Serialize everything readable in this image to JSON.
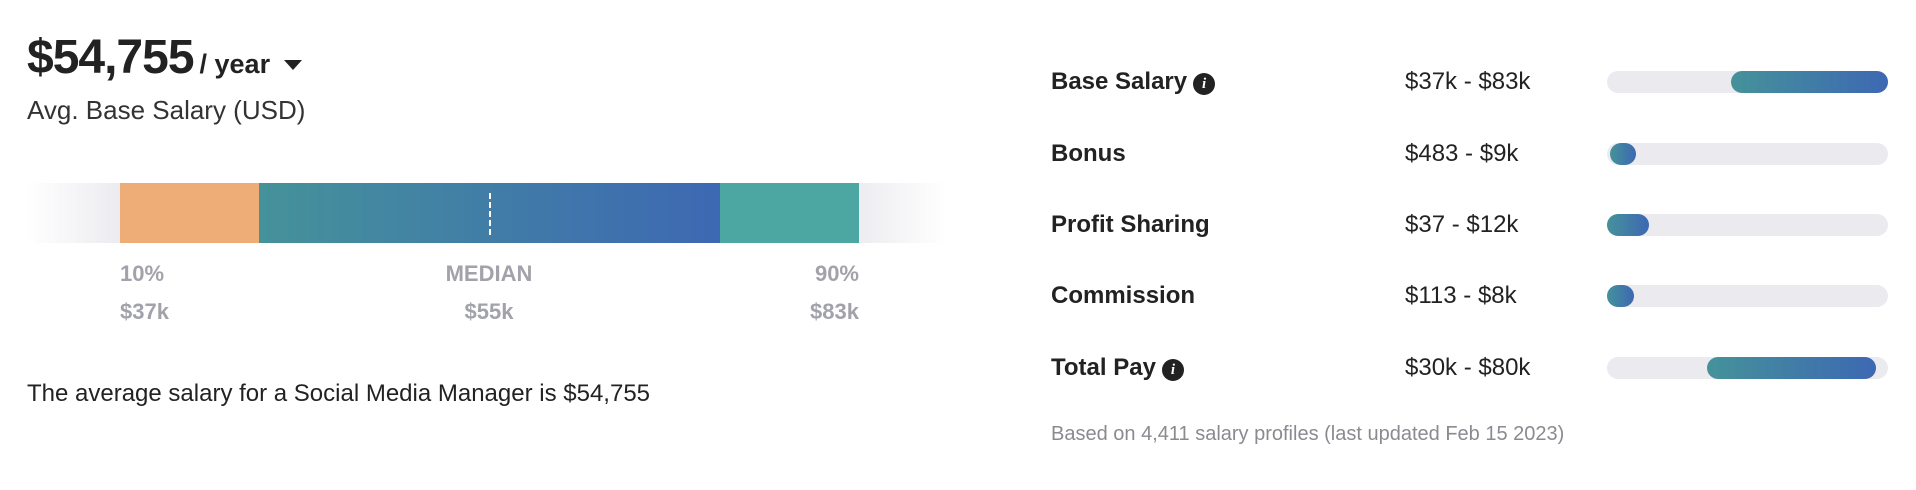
{
  "header": {
    "amount": "$54,755",
    "period": "/ year",
    "subtitle": "Avg. Base Salary (USD)"
  },
  "distribution": {
    "colors": {
      "low": "#eeac76",
      "mid_start": "#45929a",
      "mid_end": "#3d68b3",
      "high": "#4ca7a3"
    },
    "p10_label": "10%",
    "p10_value": "$37k",
    "median_label": "MEDIAN",
    "median_value": "$55k",
    "p90_label": "90%",
    "p90_value": "$83k"
  },
  "sentence": "The average salary for a Social Media Manager is $54,755",
  "breakdown": [
    {
      "label": "Base Salary",
      "info": true,
      "range": "$37k - $83k",
      "fill_start": 0.44,
      "fill_end": 1.0
    },
    {
      "label": "Bonus",
      "info": false,
      "range": "$483 - $9k",
      "fill_start": 0.01,
      "fill_end": 0.105
    },
    {
      "label": "Profit Sharing",
      "info": false,
      "range": "$37 - $12k",
      "fill_start": 0.0,
      "fill_end": 0.148
    },
    {
      "label": "Commission",
      "info": false,
      "range": "$113 - $8k",
      "fill_start": 0.0,
      "fill_end": 0.096
    },
    {
      "label": "Total Pay",
      "info": true,
      "range": "$30k - $80k",
      "fill_start": 0.357,
      "fill_end": 0.957
    }
  ],
  "info_glyph": "i",
  "footnote": "Based on 4,411 salary profiles (last updated Feb 15 2023)"
}
